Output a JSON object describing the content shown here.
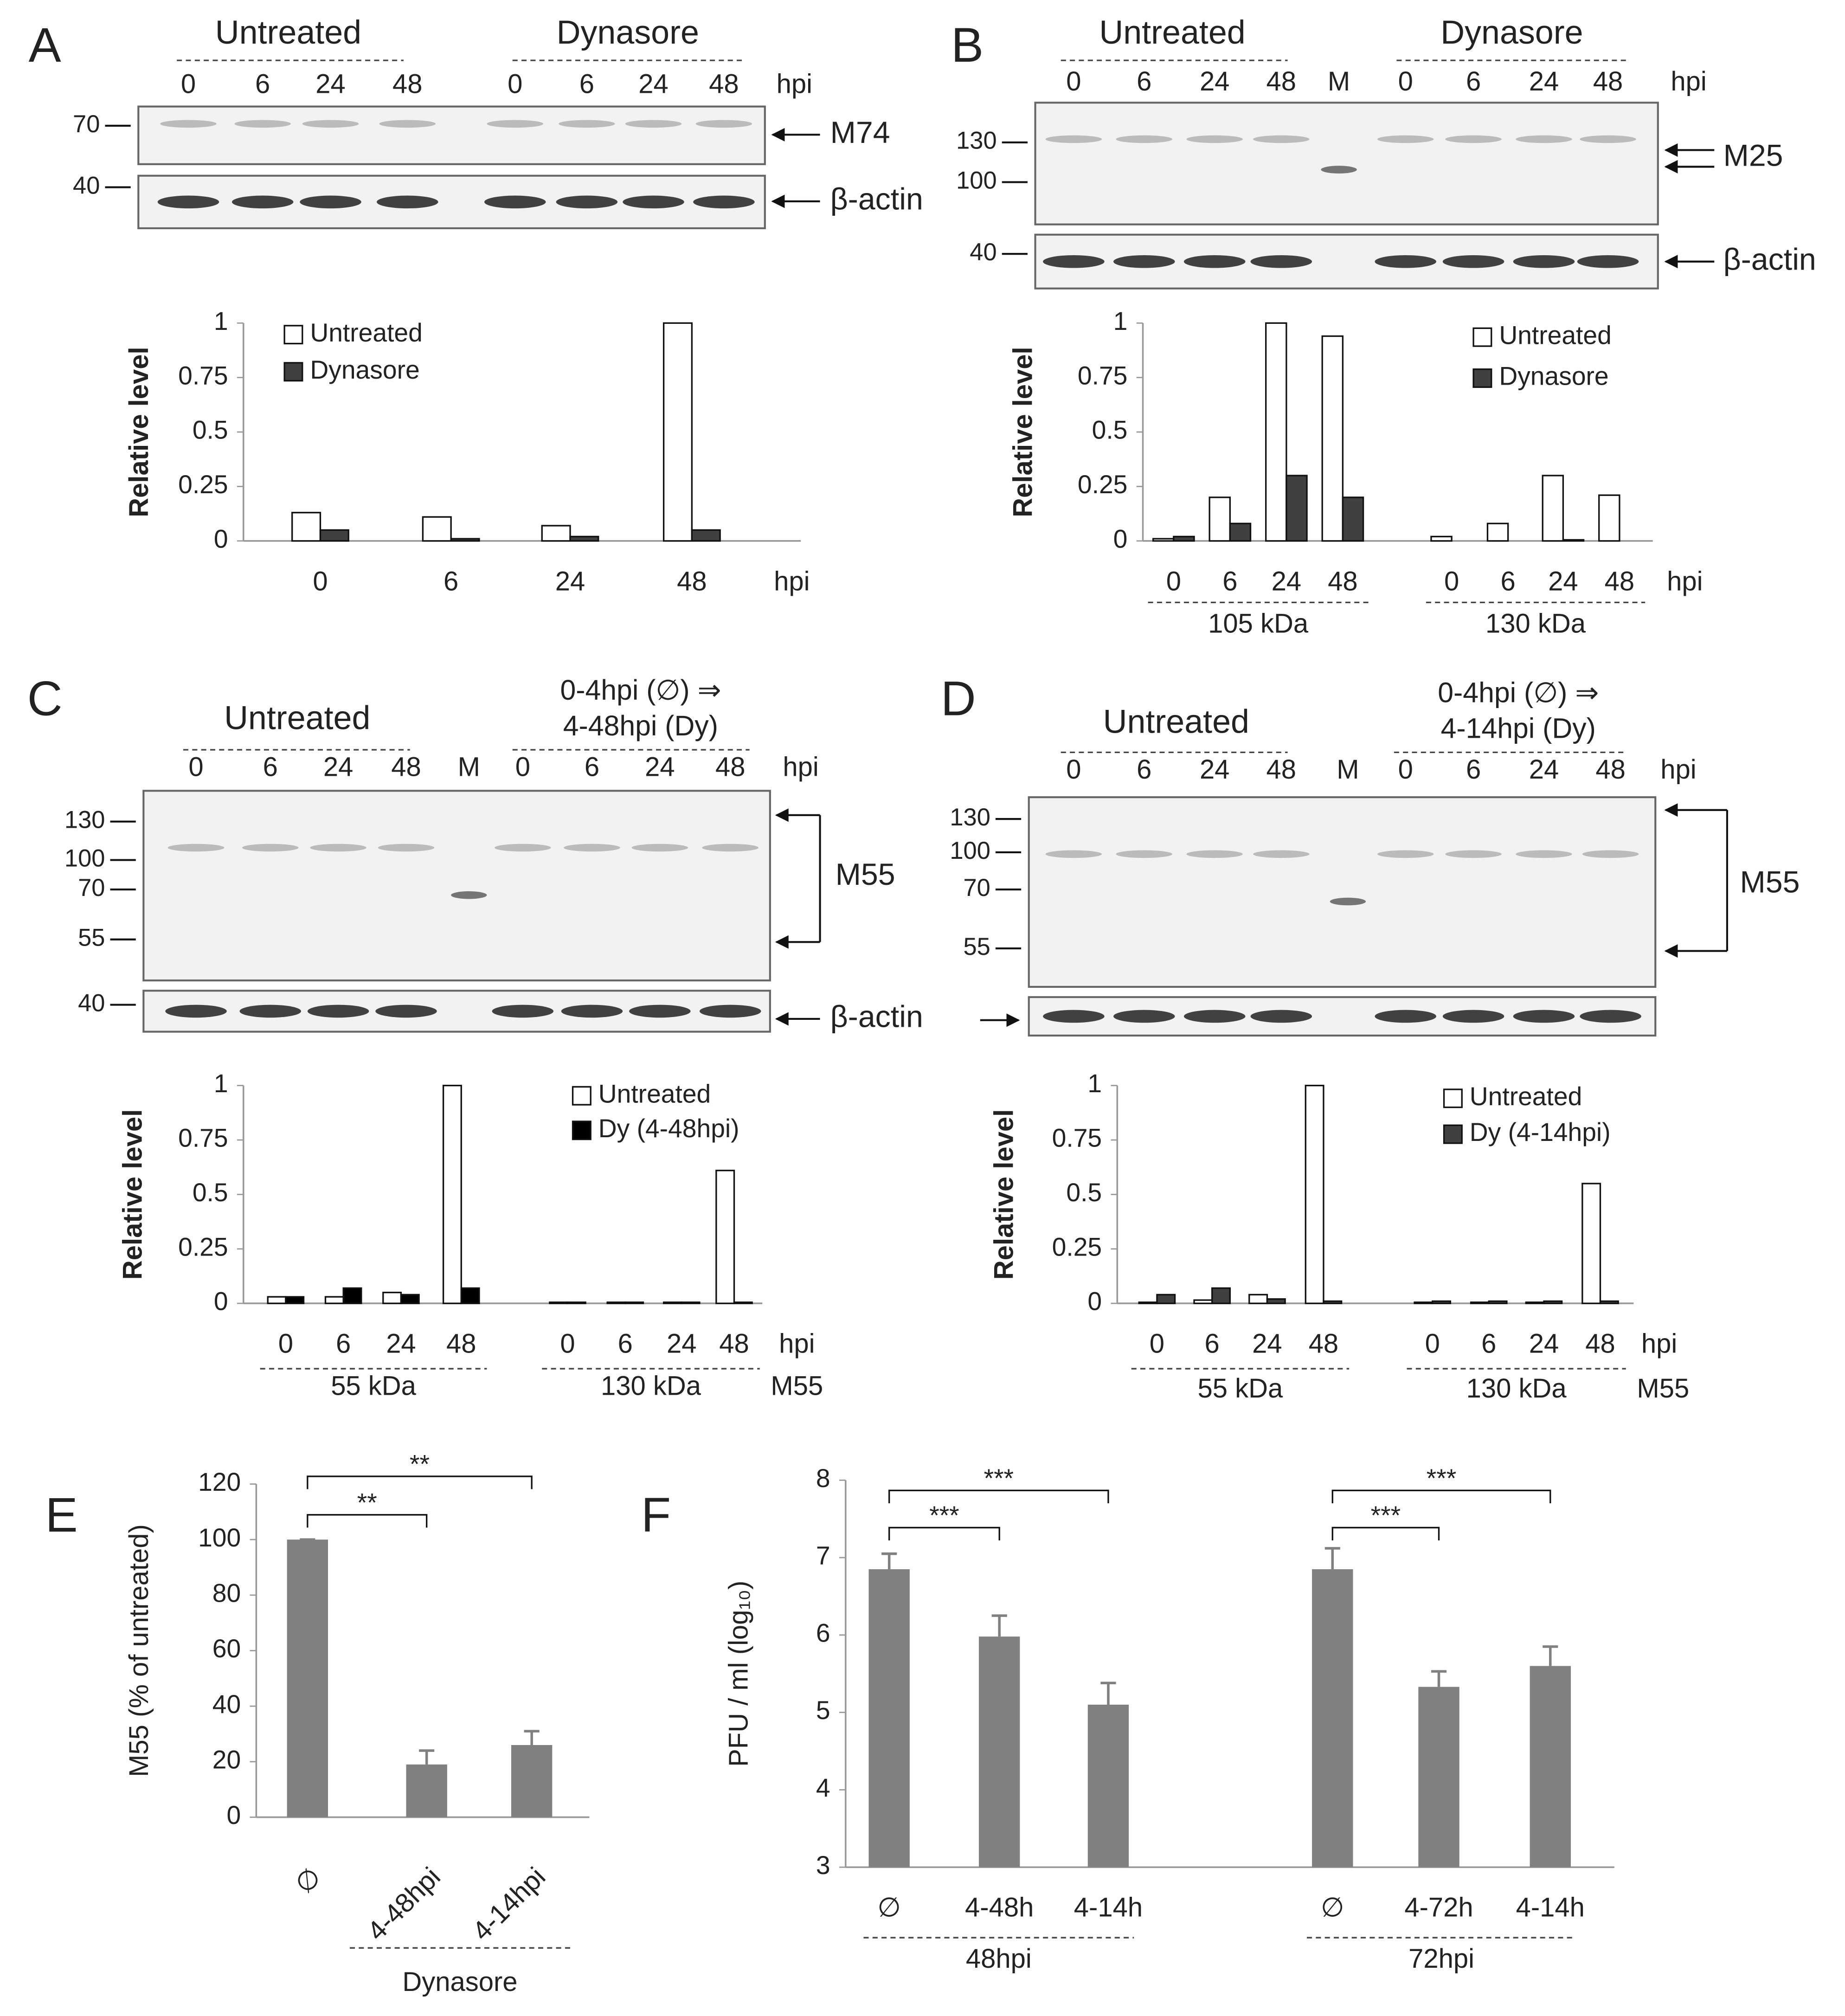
{
  "panels": [
    "A",
    "B",
    "C",
    "D",
    "E",
    "F"
  ],
  "blots": [
    {
      "groups": [
        "Untreated",
        "Dynasore"
      ],
      "lanes": [
        "0",
        "6",
        "24",
        "48",
        "0",
        "6",
        "24",
        "48"
      ],
      "lane_unit": "hpi",
      "strips": [
        {
          "markers": [
            70
          ],
          "label": "M74"
        },
        {
          "markers": [
            40
          ],
          "label": "β-actin"
        }
      ]
    },
    {
      "groups": [
        "Untreated",
        "Dynasore"
      ],
      "lanes": [
        "0",
        "6",
        "24",
        "48",
        "M",
        "0",
        "6",
        "24",
        "48"
      ],
      "lane_unit": "hpi",
      "strips": [
        {
          "markers": [
            130,
            100
          ],
          "label": "M25"
        },
        {
          "markers": [
            40
          ],
          "label": "β-actin"
        }
      ]
    },
    {
      "groups": [
        "Untreated",
        [
          "0-4hpi (∅) ⇒",
          "4-48hpi (Dy)"
        ]
      ],
      "lanes": [
        "0",
        "6",
        "24",
        "48",
        "M",
        "0",
        "6",
        "24",
        "48"
      ],
      "lane_unit": "hpi",
      "strips": [
        {
          "markers": [
            130,
            100,
            70,
            55
          ],
          "label": "M55"
        },
        {
          "markers": [
            40
          ],
          "label": "β-actin"
        }
      ]
    },
    {
      "groups": [
        "Untreated",
        [
          "0-4hpi (∅) ⇒",
          "4-14hpi (Dy)"
        ]
      ],
      "lanes": [
        "0",
        "6",
        "24",
        "48",
        "M",
        "0",
        "6",
        "24",
        "48"
      ],
      "lane_unit": "hpi",
      "strips": [
        {
          "markers": [
            130,
            100,
            70,
            55
          ],
          "label": "M55"
        },
        {
          "markers": []
        }
      ]
    }
  ],
  "chart_data": [
    {
      "type": "bar",
      "ylabel": "Relative level",
      "xlabel": "hpi",
      "categories": [
        "0",
        "6",
        "24",
        "48"
      ],
      "series": [
        {
          "name": "Untreated",
          "color": "#ffffff",
          "values": [
            0.13,
            0.11,
            0.07,
            1
          ]
        },
        {
          "name": "Dynasore",
          "color": "#404040",
          "values": [
            0.05,
            0.01,
            0.02,
            0.05
          ]
        }
      ],
      "ylim": [
        0,
        1
      ],
      "yticks": [
        0,
        0.25,
        0.5,
        0.75,
        1
      ]
    },
    {
      "type": "bar",
      "ylabel": "Relative level",
      "xlabel": "hpi",
      "categories": [
        "0",
        "6",
        "24",
        "48",
        "0",
        "6",
        "24",
        "48"
      ],
      "groups": [
        "105 kDa",
        "130 kDa"
      ],
      "series": [
        {
          "name": "Untreated",
          "color": "#ffffff",
          "values": [
            0.01,
            0.2,
            1,
            0.94,
            0.02,
            0.08,
            0.3,
            0.21
          ]
        },
        {
          "name": "Dynasore",
          "color": "#404040",
          "values": [
            0.02,
            0.08,
            0.3,
            0.2,
            0,
            0,
            0.005,
            0
          ]
        }
      ],
      "ylim": [
        0,
        1
      ],
      "yticks": [
        0,
        0.25,
        0.5,
        0.75,
        1
      ]
    },
    {
      "type": "bar",
      "ylabel": "Relative level",
      "xlabel": "hpi",
      "group_axis_label": "M55",
      "categories": [
        "0",
        "6",
        "24",
        "48",
        "0",
        "6",
        "24",
        "48"
      ],
      "groups": [
        "55 kDa",
        "130 kDa"
      ],
      "series": [
        {
          "name": "Untreated",
          "color": "#ffffff",
          "values": [
            0.03,
            0.03,
            0.05,
            1,
            0.005,
            0.005,
            0.005,
            0.61
          ]
        },
        {
          "name": "Dy (4-48hpi)",
          "color": "#000000",
          "values": [
            0.03,
            0.07,
            0.04,
            0.07,
            0.005,
            0.005,
            0.005,
            0.005
          ]
        }
      ],
      "ylim": [
        0,
        1
      ],
      "yticks": [
        0,
        0.25,
        0.5,
        0.75,
        1
      ]
    },
    {
      "type": "bar",
      "ylabel": "Relative level",
      "xlabel": "hpi",
      "group_axis_label": "M55",
      "categories": [
        "0",
        "6",
        "24",
        "48",
        "0",
        "6",
        "24",
        "48"
      ],
      "groups": [
        "55 kDa",
        "130 kDa"
      ],
      "series": [
        {
          "name": "Untreated",
          "color": "#ffffff",
          "values": [
            0.005,
            0.015,
            0.04,
            1,
            0.005,
            0.005,
            0.005,
            0.55
          ]
        },
        {
          "name": "Dy (4-14hpi)",
          "color": "#404040",
          "values": [
            0.04,
            0.07,
            0.02,
            0.01,
            0.01,
            0.01,
            0.01,
            0.01
          ]
        }
      ],
      "ylim": [
        0,
        1
      ],
      "yticks": [
        0,
        0.25,
        0.5,
        0.75,
        1
      ]
    },
    {
      "type": "bar",
      "ylabel": "M55 (% of untreated)",
      "categories": [
        "∅",
        "4-48hpi",
        "4-14hpi"
      ],
      "group_label": "Dynasore",
      "values": [
        100,
        19,
        26
      ],
      "errors": [
        0,
        5,
        5
      ],
      "color": "#808080",
      "ylim": [
        0,
        120
      ],
      "yticks": [
        0,
        20,
        40,
        60,
        80,
        100,
        120
      ],
      "brackets": [
        {
          "label": "**",
          "pair": [
            0,
            1
          ]
        },
        {
          "label": "**",
          "pair": [
            0,
            2
          ]
        }
      ]
    },
    {
      "type": "bar",
      "ylabel": "PFU / ml (log₁₀)",
      "categories": [
        "∅",
        "4-48h",
        "4-14h",
        "∅",
        "4-72h",
        "4-14h"
      ],
      "groups": [
        "48hpi",
        "72hpi"
      ],
      "values": [
        6.85,
        5.98,
        5.1,
        6.85,
        5.33,
        5.6
      ],
      "errors": [
        0.2,
        0.27,
        0.28,
        0.27,
        0.2,
        0.25
      ],
      "color": "#808080",
      "ylim": [
        3,
        8
      ],
      "yticks": [
        3,
        4,
        5,
        6,
        7,
        8
      ],
      "brackets": [
        {
          "label": "***",
          "pair": [
            0,
            1
          ]
        },
        {
          "label": "***",
          "pair": [
            0,
            2
          ]
        },
        {
          "label": "***",
          "pair": [
            3,
            4
          ]
        },
        {
          "label": "***",
          "pair": [
            3,
            5
          ]
        }
      ]
    }
  ]
}
